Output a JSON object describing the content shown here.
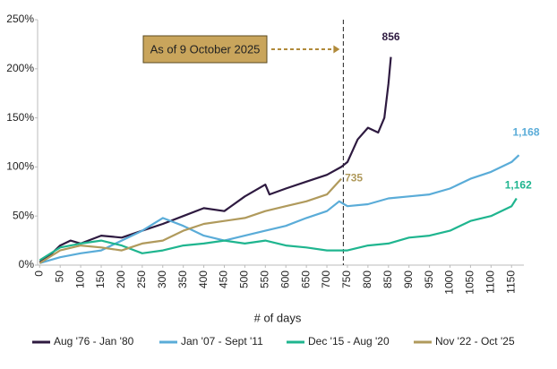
{
  "chart_data": {
    "type": "line",
    "x_label": "# of days",
    "xlim": [
      -5,
      1180
    ],
    "xticks": [
      0,
      50,
      100,
      150,
      200,
      250,
      300,
      350,
      400,
      450,
      500,
      550,
      600,
      650,
      700,
      750,
      800,
      850,
      900,
      950,
      1000,
      1050,
      1100,
      1150
    ],
    "ylim": [
      0,
      250
    ],
    "yticks": [
      {
        "value": 0,
        "label": "0%"
      },
      {
        "value": 50,
        "label": "50%"
      },
      {
        "value": 100,
        "label": "100%"
      },
      {
        "value": 150,
        "label": "150%"
      },
      {
        "value": 200,
        "label": "200%"
      },
      {
        "value": 250,
        "label": "250%"
      }
    ],
    "annotation": {
      "text": "As of 9 October 2025",
      "x": 740
    },
    "series": [
      {
        "name": "Aug '76 - Jan '80",
        "color": "#2e1a40",
        "end_label": "856",
        "x": [
          0,
          25,
          50,
          75,
          100,
          150,
          200,
          250,
          300,
          350,
          400,
          450,
          500,
          550,
          560,
          600,
          650,
          700,
          735,
          750,
          775,
          800,
          825,
          840,
          850,
          856
        ],
        "values": [
          3,
          10,
          20,
          25,
          22,
          30,
          28,
          35,
          42,
          50,
          58,
          55,
          70,
          82,
          72,
          78,
          85,
          92,
          100,
          105,
          128,
          140,
          135,
          150,
          185,
          212
        ]
      },
      {
        "name": "Jan '07 - Sept '11",
        "color": "#5aacd8",
        "end_label": "1,168",
        "x": [
          0,
          50,
          100,
          150,
          200,
          250,
          300,
          350,
          400,
          450,
          500,
          550,
          600,
          650,
          700,
          730,
          750,
          800,
          850,
          900,
          950,
          1000,
          1050,
          1100,
          1150,
          1168
        ],
        "values": [
          2,
          8,
          12,
          15,
          25,
          35,
          48,
          40,
          30,
          25,
          30,
          35,
          40,
          48,
          55,
          65,
          60,
          62,
          68,
          70,
          72,
          78,
          88,
          95,
          105,
          112
        ]
      },
      {
        "name": "Dec '15 - Aug '20",
        "color": "#1fb58f",
        "end_label": "1,162",
        "x": [
          0,
          50,
          100,
          150,
          200,
          250,
          300,
          350,
          400,
          450,
          500,
          550,
          600,
          650,
          700,
          750,
          800,
          850,
          900,
          950,
          1000,
          1050,
          1100,
          1150,
          1162
        ],
        "values": [
          5,
          18,
          22,
          25,
          20,
          12,
          15,
          20,
          22,
          25,
          22,
          25,
          20,
          18,
          15,
          15,
          20,
          22,
          28,
          30,
          35,
          45,
          50,
          60,
          68
        ]
      },
      {
        "name": "Nov '22 - Oct '25",
        "color": "#b09a5c",
        "end_label": "735",
        "x": [
          0,
          50,
          100,
          150,
          200,
          250,
          300,
          350,
          400,
          450,
          500,
          550,
          600,
          650,
          700,
          735
        ],
        "values": [
          2,
          15,
          20,
          18,
          15,
          22,
          25,
          35,
          42,
          45,
          48,
          55,
          60,
          65,
          72,
          88
        ]
      }
    ]
  }
}
